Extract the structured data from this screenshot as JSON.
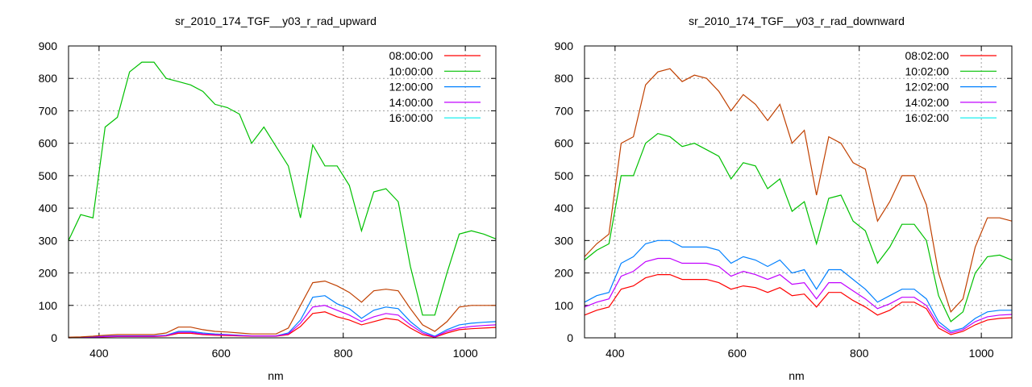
{
  "chart_data": [
    {
      "type": "line",
      "title": "sr_2010_174_TGF__y03_r_rad_upward",
      "xlabel": "nm",
      "ylabel": "",
      "xlim": [
        350,
        1050
      ],
      "ylim": [
        0,
        900
      ],
      "xticks": [
        400,
        600,
        800,
        1000
      ],
      "yticks": [
        0,
        100,
        200,
        300,
        400,
        500,
        600,
        700,
        800,
        900
      ],
      "grid": true,
      "legend": "top-right",
      "x": [
        350,
        370,
        390,
        410,
        430,
        450,
        470,
        490,
        510,
        530,
        550,
        570,
        590,
        610,
        630,
        650,
        670,
        690,
        710,
        730,
        750,
        770,
        790,
        810,
        830,
        850,
        870,
        890,
        910,
        930,
        950,
        970,
        990,
        1010,
        1030,
        1050
      ],
      "series": [
        {
          "name": "08:00:00",
          "legend_color": "#ff0000",
          "line_color": "#ff0000",
          "values": [
            0,
            1,
            2,
            3,
            4,
            4,
            4,
            4,
            6,
            14,
            14,
            10,
            8,
            7,
            6,
            5,
            5,
            5,
            10,
            35,
            75,
            80,
            65,
            55,
            40,
            50,
            60,
            55,
            30,
            10,
            2,
            15,
            25,
            28,
            30,
            32
          ]
        },
        {
          "name": "10:00:00",
          "legend_color": "#00c000",
          "line_color": "#00c000",
          "values": [
            300,
            380,
            370,
            650,
            680,
            820,
            850,
            850,
            800,
            790,
            780,
            760,
            720,
            710,
            690,
            600,
            650,
            590,
            530,
            370,
            595,
            530,
            530,
            470,
            330,
            450,
            460,
            420,
            220,
            70,
            70,
            200,
            320,
            330,
            320,
            305
          ]
        },
        {
          "name": "12:00:00",
          "legend_color": "#0080ff",
          "line_color": "#0080ff",
          "values": [
            1,
            2,
            3,
            5,
            6,
            6,
            6,
            6,
            8,
            20,
            20,
            15,
            12,
            10,
            8,
            6,
            6,
            6,
            15,
            55,
            125,
            130,
            105,
            90,
            60,
            85,
            95,
            90,
            50,
            20,
            5,
            25,
            40,
            45,
            48,
            50
          ]
        },
        {
          "name": "14:00:00",
          "legend_color": "#c000ff",
          "line_color": "#c000ff",
          "values": [
            1,
            1,
            2,
            4,
            5,
            5,
            5,
            5,
            7,
            17,
            17,
            12,
            10,
            9,
            7,
            6,
            6,
            6,
            12,
            45,
            95,
            100,
            85,
            70,
            50,
            65,
            75,
            70,
            40,
            15,
            3,
            20,
            30,
            35,
            38,
            40
          ]
        },
        {
          "name": "16:00:00",
          "legend_color": "#00eeee",
          "line_color": "#c04000",
          "values": [
            2,
            3,
            5,
            8,
            10,
            10,
            10,
            10,
            15,
            33,
            33,
            25,
            20,
            18,
            15,
            12,
            12,
            12,
            30,
            100,
            170,
            175,
            160,
            140,
            110,
            145,
            150,
            145,
            90,
            40,
            20,
            50,
            95,
            100,
            100,
            100
          ]
        }
      ]
    },
    {
      "type": "line",
      "title": "sr_2010_174_TGF__y03_r_rad_downward",
      "xlabel": "nm",
      "ylabel": "",
      "xlim": [
        350,
        1050
      ],
      "ylim": [
        0,
        900
      ],
      "xticks": [
        400,
        600,
        800,
        1000
      ],
      "yticks": [
        0,
        100,
        200,
        300,
        400,
        500,
        600,
        700,
        800,
        900
      ],
      "grid": true,
      "legend": "top-right",
      "x": [
        350,
        370,
        390,
        410,
        430,
        450,
        470,
        490,
        510,
        530,
        550,
        570,
        590,
        610,
        630,
        650,
        670,
        690,
        710,
        730,
        750,
        770,
        790,
        810,
        830,
        850,
        870,
        890,
        910,
        930,
        950,
        970,
        990,
        1010,
        1030,
        1050
      ],
      "series": [
        {
          "name": "08:02:00",
          "legend_color": "#ff0000",
          "line_color": "#ff0000",
          "values": [
            70,
            85,
            95,
            150,
            160,
            185,
            195,
            195,
            180,
            180,
            180,
            170,
            150,
            160,
            155,
            140,
            155,
            130,
            135,
            95,
            140,
            140,
            115,
            95,
            70,
            85,
            110,
            110,
            90,
            30,
            10,
            20,
            40,
            55,
            60,
            62
          ]
        },
        {
          "name": "10:02:00",
          "legend_color": "#00c000",
          "line_color": "#00c000",
          "values": [
            240,
            270,
            290,
            500,
            500,
            600,
            630,
            620,
            590,
            600,
            580,
            560,
            490,
            540,
            530,
            460,
            490,
            390,
            420,
            290,
            430,
            440,
            360,
            330,
            230,
            280,
            350,
            350,
            300,
            130,
            50,
            80,
            200,
            250,
            255,
            240
          ]
        },
        {
          "name": "12:02:00",
          "legend_color": "#0080ff",
          "line_color": "#0080ff",
          "values": [
            110,
            130,
            140,
            230,
            250,
            290,
            300,
            300,
            280,
            280,
            280,
            270,
            230,
            250,
            240,
            220,
            240,
            200,
            210,
            150,
            210,
            210,
            180,
            150,
            110,
            130,
            150,
            150,
            120,
            50,
            20,
            30,
            60,
            80,
            85,
            85
          ]
        },
        {
          "name": "14:02:00",
          "legend_color": "#c000ff",
          "line_color": "#c000ff",
          "values": [
            95,
            110,
            120,
            190,
            205,
            235,
            245,
            245,
            230,
            230,
            230,
            220,
            190,
            205,
            195,
            180,
            195,
            165,
            170,
            120,
            170,
            170,
            145,
            120,
            90,
            105,
            125,
            125,
            100,
            40,
            15,
            25,
            50,
            65,
            70,
            72
          ]
        },
        {
          "name": "16:02:00",
          "legend_color": "#00eeee",
          "line_color": "#c04000",
          "values": [
            250,
            290,
            320,
            600,
            620,
            780,
            820,
            830,
            790,
            810,
            800,
            760,
            700,
            750,
            720,
            670,
            720,
            600,
            640,
            440,
            620,
            600,
            540,
            520,
            360,
            420,
            500,
            500,
            410,
            200,
            80,
            120,
            280,
            370,
            370,
            360
          ]
        }
      ]
    }
  ]
}
